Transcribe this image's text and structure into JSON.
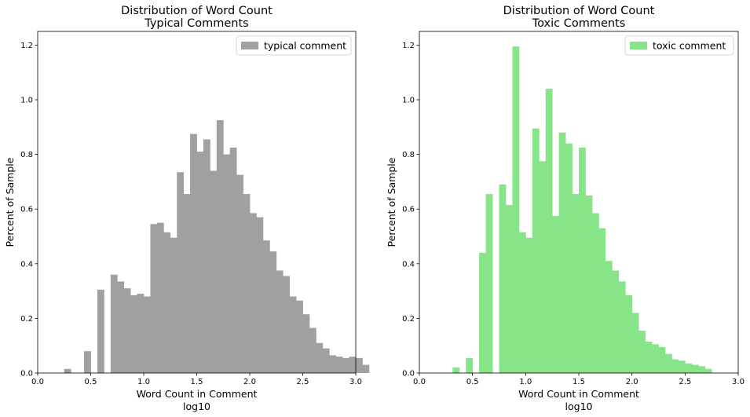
{
  "chart_data": [
    {
      "type": "bar",
      "title": "Distribution of Word Count",
      "subtitle": "Typical Comments",
      "xlabel": "Word Count in Comment",
      "xlabel2": "log10",
      "ylabel": "Percent of Sample",
      "xlim": [
        0,
        3
      ],
      "ylim": [
        0,
        1.25
      ],
      "xticks": [
        "0.0",
        "0.5",
        "1.0",
        "1.5",
        "2.0",
        "2.5",
        "3.0"
      ],
      "yticks": [
        "0.0",
        "0.2",
        "0.4",
        "0.6",
        "0.8",
        "1.0",
        "1.2"
      ],
      "legend": "top-right",
      "grid": false,
      "color": "#a0a0a0",
      "series": [
        {
          "name": "typical comment",
          "bin_start": 0.0,
          "bin_width": 0.0625,
          "values": [
            0,
            0,
            0,
            0,
            0.015,
            0,
            0,
            0.08,
            0,
            0.305,
            0,
            0.36,
            0.335,
            0.31,
            0.285,
            0.29,
            0.28,
            0.545,
            0.55,
            0.515,
            0.495,
            0.735,
            0.655,
            0.875,
            0.81,
            0.855,
            0.74,
            0.925,
            0.8,
            0.825,
            0.725,
            0.655,
            0.585,
            0.57,
            0.485,
            0.445,
            0.375,
            0.355,
            0.28,
            0.265,
            0.215,
            0.165,
            0.11,
            0.09,
            0.065,
            0.06,
            0.055,
            0.06,
            0.055,
            0.03
          ]
        }
      ]
    },
    {
      "type": "bar",
      "title": "Distribution of Word Count",
      "subtitle": "Toxic Comments",
      "xlabel": "Word Count in Comment",
      "xlabel2": "log10",
      "ylabel": "Percent of Sample",
      "xlim": [
        0,
        3
      ],
      "ylim": [
        0,
        1.25
      ],
      "xticks": [
        "0.0",
        "0.5",
        "1.0",
        "1.5",
        "2.0",
        "2.5",
        "3.0"
      ],
      "yticks": [
        "0.0",
        "0.2",
        "0.4",
        "0.6",
        "0.8",
        "1.0",
        "1.2"
      ],
      "legend": "top-right",
      "grid": false,
      "color": "#88e488",
      "series": [
        {
          "name": "toxic comment",
          "bin_start": 0.0,
          "bin_width": 0.0625,
          "values": [
            0,
            0,
            0,
            0,
            0,
            0.02,
            0,
            0.055,
            0,
            0.44,
            0.655,
            0,
            0.69,
            0.615,
            1.195,
            0.515,
            0.495,
            0.895,
            0.775,
            1.04,
            0.575,
            0.88,
            0.84,
            0.655,
            0.825,
            0.65,
            0.585,
            0.53,
            0.41,
            0.375,
            0.335,
            0.285,
            0.22,
            0.155,
            0.115,
            0.105,
            0.095,
            0.07,
            0.05,
            0.045,
            0.035,
            0.03,
            0.025,
            0.015
          ]
        }
      ]
    }
  ]
}
